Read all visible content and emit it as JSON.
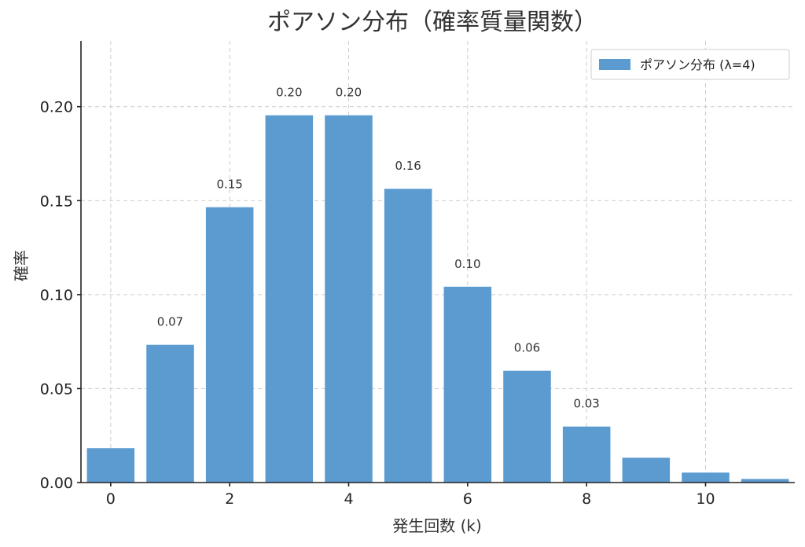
{
  "chart_data": {
    "type": "bar",
    "title": "ポアソン分布（確率質量関数）",
    "xlabel": "発生回数 (k)",
    "ylabel": "確率",
    "x": [
      0,
      1,
      2,
      3,
      4,
      5,
      6,
      7,
      8,
      9,
      10,
      11
    ],
    "series": [
      {
        "name": "ポアソン分布 (λ=4)",
        "color": "#5b9bd0",
        "values": [
          0.0183,
          0.0733,
          0.1465,
          0.1954,
          0.1954,
          0.1563,
          0.1042,
          0.0595,
          0.0298,
          0.0132,
          0.0053,
          0.0019
        ]
      }
    ],
    "data_labels": [
      "",
      "0.07",
      "0.15",
      "0.20",
      "0.20",
      "0.16",
      "0.10",
      "0.06",
      "0.03",
      "",
      "",
      ""
    ],
    "x_ticks": [
      0,
      2,
      4,
      6,
      8,
      10
    ],
    "x_tick_labels": [
      "0",
      "2",
      "4",
      "6",
      "8",
      "10"
    ],
    "y_ticks": [
      0,
      0.05,
      0.1,
      0.15,
      0.2
    ],
    "y_tick_labels": [
      "0.00",
      "0.05",
      "0.10",
      "0.15",
      "0.20"
    ],
    "xlim": [
      -0.5,
      11.5
    ],
    "ylim": [
      0,
      0.235
    ],
    "grid": true,
    "legend_position": "top-right"
  }
}
